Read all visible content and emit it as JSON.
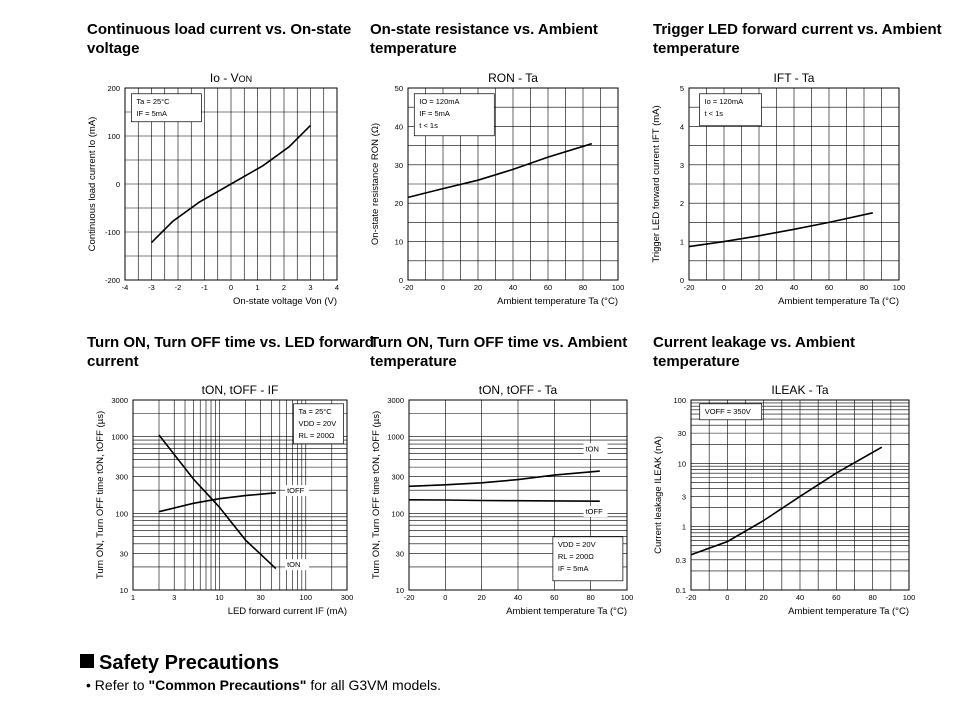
{
  "chart_data": [
    {
      "type": "line",
      "title": "Continuous load current vs. On-state voltage",
      "subtitle_main": "Io - V",
      "subtitle_sub": "ON",
      "xlabel": "On-state voltage Von (V)",
      "ylabel": "Continuous load current Io (mA)",
      "xlim": [
        -4,
        4
      ],
      "ylim": [
        -200,
        200
      ],
      "xscale": "linear",
      "yscale": "linear",
      "xticks": [
        "-4",
        "-3",
        "-2",
        "-1",
        "0",
        "1",
        "2",
        "3",
        "4"
      ],
      "yticks": [
        "-200",
        "-100",
        "0",
        "100",
        "200"
      ],
      "ytick_values": [
        -200,
        -100,
        0,
        100,
        200
      ],
      "xtick_values": [
        -4,
        -3,
        -2,
        -1,
        0,
        1,
        2,
        3,
        4
      ],
      "vgrid": [
        -4,
        -3.5,
        -3,
        -2.5,
        -2,
        -1.5,
        -1,
        -0.5,
        0,
        0.5,
        1,
        1.5,
        2,
        2.5,
        3,
        3.5,
        4
      ],
      "hgrid": [
        -200,
        -150,
        -100,
        -50,
        0,
        50,
        100,
        150,
        200
      ],
      "annotations": [
        "Ta = 25°C",
        "IF = 5mA"
      ],
      "grid": true,
      "series": [
        {
          "values_xy": [
            [
              -3,
              -122
            ],
            [
              -2.2,
              -78
            ],
            [
              -1.2,
              -38
            ],
            [
              0,
              0
            ],
            [
              1.2,
              38
            ],
            [
              2.2,
              78
            ],
            [
              3,
              122
            ]
          ]
        }
      ]
    },
    {
      "type": "line",
      "title": "On-state resistance vs. Ambient temperature",
      "subtitle_main": "RON - Ta",
      "subtitle_sub": "",
      "xlabel": "Ambient temperature Ta (°C)",
      "ylabel": "On-state resistance RON (Ω)",
      "xlim": [
        -20,
        100
      ],
      "ylim": [
        0,
        50
      ],
      "xscale": "linear",
      "yscale": "linear",
      "xticks": [
        "-20",
        "0",
        "20",
        "40",
        "60",
        "80",
        "100"
      ],
      "yticks": [
        "0",
        "10",
        "20",
        "30",
        "40",
        "50"
      ],
      "ytick_values": [
        0,
        10,
        20,
        30,
        40,
        50
      ],
      "xtick_values": [
        -20,
        0,
        20,
        40,
        60,
        80,
        100
      ],
      "vgrid": [
        -20,
        -10,
        0,
        10,
        20,
        30,
        40,
        50,
        60,
        70,
        80,
        90,
        100
      ],
      "hgrid": [
        0,
        5,
        10,
        15,
        20,
        25,
        30,
        35,
        40,
        45,
        50
      ],
      "annotations": [
        "IO = 120mA",
        "IF = 5mA",
        "t < 1s"
      ],
      "grid": true,
      "series": [
        {
          "values_xy": [
            [
              -20,
              21.5
            ],
            [
              0,
              23.8
            ],
            [
              20,
              26
            ],
            [
              40,
              28.8
            ],
            [
              60,
              32
            ],
            [
              85,
              35.5
            ]
          ]
        }
      ]
    },
    {
      "type": "line",
      "title": "Trigger LED forward current vs. Ambient temperature",
      "subtitle_main": "IFT - Ta",
      "subtitle_sub": "",
      "xlabel": "Ambient temperature Ta (°C)",
      "ylabel": "Trigger LED forward current IFT (mA)",
      "xlim": [
        -20,
        100
      ],
      "ylim": [
        0,
        5
      ],
      "xscale": "linear",
      "yscale": "linear",
      "xticks": [
        "-20",
        "0",
        "20",
        "40",
        "60",
        "80",
        "100"
      ],
      "yticks": [
        "0",
        "1",
        "2",
        "3",
        "4",
        "5"
      ],
      "ytick_values": [
        0,
        1,
        2,
        3,
        4,
        5
      ],
      "xtick_values": [
        -20,
        0,
        20,
        40,
        60,
        80,
        100
      ],
      "vgrid": [
        -20,
        -10,
        0,
        10,
        20,
        30,
        40,
        50,
        60,
        70,
        80,
        90,
        100
      ],
      "hgrid": [
        0,
        0.5,
        1,
        1.5,
        2,
        2.5,
        3,
        3.5,
        4,
        4.5,
        5
      ],
      "annotations": [
        "Io = 120mA",
        "t < 1s"
      ],
      "grid": true,
      "series": [
        {
          "values_xy": [
            [
              -20,
              0.87
            ],
            [
              0,
              1.0
            ],
            [
              20,
              1.15
            ],
            [
              40,
              1.32
            ],
            [
              60,
              1.5
            ],
            [
              85,
              1.75
            ]
          ]
        }
      ]
    },
    {
      "type": "line",
      "title": "Turn ON, Turn OFF time vs. LED forward current",
      "subtitle_main": "tON, tOFF - IF",
      "subtitle_sub": "",
      "xlabel": "LED forward current IF (mA)",
      "ylabel": "Turn ON, Turn OFF time tON, tOFF (µs)",
      "xlim": [
        1,
        300
      ],
      "ylim": [
        10,
        3000
      ],
      "xscale": "log",
      "yscale": "log",
      "xticks": [
        "1",
        "3",
        "10",
        "30",
        "100",
        "300"
      ],
      "yticks": [
        "10",
        "30",
        "100",
        "300",
        "1000",
        "3000"
      ],
      "ytick_values": [
        10,
        30,
        100,
        300,
        1000,
        3000
      ],
      "xtick_values": [
        1,
        3,
        10,
        30,
        100,
        300
      ],
      "vgrid": [
        1,
        2,
        3,
        4,
        5,
        6,
        7,
        8,
        9,
        10,
        20,
        30,
        40,
        50,
        60,
        70,
        80,
        90,
        100,
        200,
        300
      ],
      "hgrid": [
        10,
        20,
        30,
        40,
        50,
        60,
        70,
        80,
        90,
        100,
        200,
        300,
        400,
        500,
        600,
        700,
        800,
        900,
        1000,
        2000,
        3000
      ],
      "annotations": [
        "Ta = 25°C",
        "VDD = 20V",
        "RL = 200Ω"
      ],
      "grid": true,
      "series": [
        {
          "name": "tON",
          "values_xy": [
            [
              2,
              1050
            ],
            [
              5,
              280
            ],
            [
              10,
              120
            ],
            [
              20,
              45
            ],
            [
              45,
              19
            ]
          ]
        },
        {
          "name": "tOFF",
          "values_xy": [
            [
              2,
              105
            ],
            [
              5,
              135
            ],
            [
              10,
              155
            ],
            [
              20,
              170
            ],
            [
              45,
              185
            ]
          ]
        }
      ]
    },
    {
      "type": "line",
      "title": "Turn ON, Turn OFF time vs. Ambient temperature",
      "subtitle_main": "tON, tOFF - Ta",
      "subtitle_sub": "",
      "xlabel": "Ambient temperature Ta (°C)",
      "ylabel": "Turn ON, Turn OFF time tON, tOFF (µs)",
      "xlim": [
        -20,
        100
      ],
      "ylim": [
        10,
        3000
      ],
      "xscale": "linear",
      "yscale": "log",
      "xticks": [
        "-20",
        "0",
        "20",
        "40",
        "60",
        "80",
        "100"
      ],
      "yticks": [
        "10",
        "30",
        "100",
        "300",
        "1000",
        "3000"
      ],
      "ytick_values": [
        10,
        30,
        100,
        300,
        1000,
        3000
      ],
      "xtick_values": [
        -20,
        0,
        20,
        40,
        60,
        80,
        100
      ],
      "vgrid": [
        -20,
        0,
        20,
        40,
        60,
        80,
        100
      ],
      "hgrid": [
        10,
        20,
        30,
        40,
        50,
        60,
        70,
        80,
        90,
        100,
        200,
        300,
        400,
        500,
        600,
        700,
        800,
        900,
        1000,
        2000,
        3000
      ],
      "annotations": [
        "VDD = 20V",
        "RL = 200Ω",
        "IF = 5mA"
      ],
      "grid": true,
      "series": [
        {
          "name": "tON",
          "values_xy": [
            [
              -20,
              225
            ],
            [
              0,
              235
            ],
            [
              20,
              250
            ],
            [
              40,
              275
            ],
            [
              60,
              315
            ],
            [
              85,
              355
            ]
          ]
        },
        {
          "name": "tOFF",
          "values_xy": [
            [
              -20,
              150
            ],
            [
              0,
              149
            ],
            [
              20,
              147
            ],
            [
              40,
              146
            ],
            [
              60,
              145
            ],
            [
              85,
              144
            ]
          ]
        }
      ]
    },
    {
      "type": "line",
      "title": "Current leakage vs. Ambient temperature",
      "subtitle_main": "ILEAK - Ta",
      "subtitle_sub": "",
      "xlabel": "Ambient temperature Ta (°C)",
      "ylabel": "Current leakage ILEAK (nA)",
      "xlim": [
        -20,
        100
      ],
      "ylim": [
        0.1,
        100
      ],
      "xscale": "linear",
      "yscale": "log",
      "xticks": [
        "-20",
        "0",
        "20",
        "40",
        "60",
        "80",
        "100"
      ],
      "yticks": [
        "0.1",
        "0.3",
        "1",
        "3",
        "10",
        "30",
        "100"
      ],
      "ytick_values": [
        0.1,
        0.3,
        1,
        3,
        10,
        30,
        100
      ],
      "xtick_values": [
        -20,
        0,
        20,
        40,
        60,
        80,
        100
      ],
      "vgrid": [
        -20,
        -10,
        0,
        10,
        20,
        30,
        40,
        50,
        60,
        70,
        80,
        90,
        100
      ],
      "hgrid": [
        0.1,
        0.2,
        0.3,
        0.4,
        0.5,
        0.6,
        0.7,
        0.8,
        0.9,
        1,
        2,
        3,
        4,
        5,
        6,
        7,
        8,
        9,
        10,
        20,
        30,
        40,
        50,
        60,
        70,
        80,
        90,
        100
      ],
      "annotations": [
        "VOFF = 350V"
      ],
      "grid": true,
      "series": [
        {
          "values_xy": [
            [
              -20,
              0.36
            ],
            [
              0,
              0.58
            ],
            [
              20,
              1.25
            ],
            [
              40,
              3.0
            ],
            [
              60,
              7.0
            ],
            [
              85,
              18
            ]
          ]
        }
      ]
    }
  ],
  "safety": {
    "heading": "Safety Precautions",
    "note_prefix": "• Refer to ",
    "note_bold": "\"Common Precautions\"",
    "note_suffix": " for all G3VM models."
  }
}
